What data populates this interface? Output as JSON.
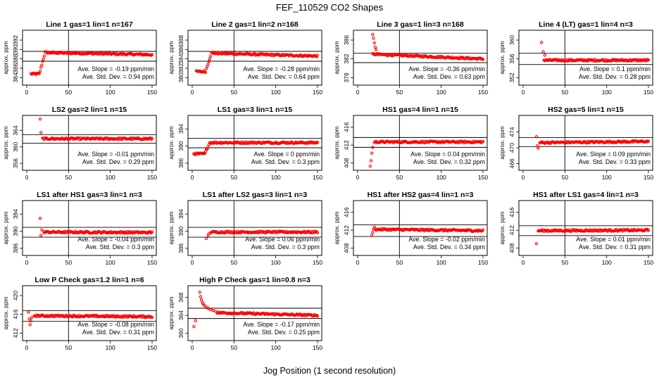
{
  "figure": {
    "title": "FEF_110529  CO2 Shapes",
    "xlabel": "Jog Position (1 second resolution)"
  },
  "chart_data": [
    {
      "type": "scatter",
      "title": "Line 1 gas=1 lin=1 n=167",
      "ylabel": "approx. ppm",
      "xlim": [
        0,
        150
      ],
      "ylim": [
        383,
        393.5
      ],
      "yticks": [
        384,
        386,
        388,
        390,
        392
      ],
      "xticks": [
        0,
        50,
        100,
        150
      ],
      "hlines": [
        389.6,
        387.5
      ],
      "vline": 50,
      "slope_text": "Ave. Slope = -0.19  ppm/min",
      "std_text": "Ave. Std. Dev. = 0.94  ppm",
      "shape": {
        "start": 5,
        "end": 150,
        "y0": 384.8,
        "rise_start": 15,
        "rise_end": 22,
        "plateau": 389.4,
        "plateau_end_val": 388.9,
        "spike": null
      }
    },
    {
      "type": "scatter",
      "title": "Line 2 gas=1 lin=2 n=168",
      "ylabel": "approx. ppm",
      "xlim": [
        0,
        150
      ],
      "ylim": [
        379,
        389.5
      ],
      "yticks": [
        380,
        382,
        384,
        386,
        388
      ],
      "xticks": [
        0,
        50,
        100,
        150
      ],
      "hlines": [
        385.6,
        383.5
      ],
      "vline": 50,
      "slope_text": "Ave. Slope = -0.28  ppm/min",
      "std_text": "Ave. Std. Dev. = 0.64  ppm",
      "shape": {
        "start": 5,
        "end": 150,
        "y0": 381.3,
        "rise_start": 16,
        "rise_end": 23,
        "plateau": 385.3,
        "plateau_end_val": 384.6,
        "spike": null
      }
    },
    {
      "type": "scatter",
      "title": "Line 3 gas=1 lin=3 n=168",
      "ylabel": "approx. ppm",
      "xlim": [
        0,
        150
      ],
      "ylim": [
        377,
        387.5
      ],
      "yticks": [
        378,
        382,
        386
      ],
      "xticks": [
        0,
        50,
        100,
        150
      ],
      "hlines": [
        383.2,
        381.2
      ],
      "vline": 50,
      "slope_text": "Ave. Slope = -0.36  ppm/min",
      "std_text": "Ave. Std. Dev. = 0.63  ppm",
      "shape": {
        "start": 18,
        "end": 150,
        "y0": null,
        "rise_start": null,
        "rise_end": null,
        "plateau": 383.0,
        "plateau_end_val": 382.0,
        "spike": [
          [
            18,
            387.2
          ],
          [
            19,
            386.4
          ],
          [
            20,
            385.4
          ],
          [
            21,
            384.5
          ],
          [
            22,
            384.0
          ]
        ]
      }
    },
    {
      "type": "scatter",
      "title": "Line 4 (LT) gas=1 lin=4 n=3",
      "ylabel": "approx. ppm",
      "xlim": [
        0,
        150
      ],
      "ylim": [
        351,
        361.5
      ],
      "yticks": [
        352,
        356,
        360
      ],
      "xticks": [
        0,
        50,
        100,
        150
      ],
      "hlines": [
        357.2,
        354.8
      ],
      "vline": 50,
      "slope_text": "Ave. Slope = 0.1  ppm/min",
      "std_text": "Ave. Std. Dev. = 0.28  ppm",
      "shape": {
        "start": 25,
        "end": 150,
        "y0": null,
        "rise_start": null,
        "rise_end": null,
        "plateau": 355.7,
        "plateau_end_val": 355.7,
        "spike": [
          [
            22,
            359.5
          ],
          [
            24,
            357.5
          ],
          [
            26,
            356.8
          ]
        ]
      }
    },
    {
      "type": "scatter",
      "title": "LS2 gas=2 lin=1 n=15",
      "ylabel": "approx. ppm",
      "xlim": [
        0,
        150
      ],
      "ylim": [
        355,
        367
      ],
      "yticks": [
        356,
        360,
        364
      ],
      "xticks": [
        0,
        50,
        100,
        150
      ],
      "hlines": [
        363.0,
        360.9
      ],
      "vline": 50,
      "slope_text": "Ave. Slope = -0.01  ppm/min",
      "std_text": "Ave. Std. Dev. = 0.29  ppm",
      "shape": {
        "start": 19,
        "end": 150,
        "y0": null,
        "rise_start": null,
        "rise_end": null,
        "plateau": 362.0,
        "plateau_end_val": 362.0,
        "spike": [
          [
            16,
            366.8
          ],
          [
            17,
            363.5
          ]
        ]
      }
    },
    {
      "type": "scatter",
      "title": "LS1 gas=3 lin=1 n=15",
      "ylabel": "approx. ppm",
      "xlim": [
        0,
        150
      ],
      "ylim": [
        385,
        396.5
      ],
      "yticks": [
        386,
        390,
        394
      ],
      "xticks": [
        0,
        50,
        100,
        150
      ],
      "hlines": [
        391.8,
        389.6
      ],
      "vline": 50,
      "slope_text": "Ave. Slope = 0  ppm/min",
      "std_text": "Ave. Std. Dev. = 0.3  ppm",
      "shape": {
        "start": 2,
        "end": 150,
        "y0": 388.2,
        "rise_start": 15,
        "rise_end": 21,
        "plateau": 390.8,
        "plateau_end_val": 390.8,
        "spike": null
      }
    },
    {
      "type": "scatter",
      "title": "HS1 gas=4 lin=1 n=15",
      "ylabel": "approx. ppm",
      "xlim": [
        0,
        150
      ],
      "ylim": [
        407,
        418
      ],
      "yticks": [
        408,
        412,
        416
      ],
      "xticks": [
        0,
        50,
        100,
        150
      ],
      "hlines": [
        413.7,
        411.5
      ],
      "vline": 50,
      "slope_text": "Ave. Slope = 0.04  ppm/min",
      "std_text": "Ave. Std. Dev. = 0.32  ppm",
      "shape": {
        "start": 20,
        "end": 150,
        "y0": null,
        "rise_start": null,
        "rise_end": null,
        "plateau": 412.7,
        "plateau_end_val": 412.7,
        "spike": [
          [
            15,
            407.3
          ],
          [
            16,
            408.5
          ],
          [
            17,
            410.2
          ],
          [
            18,
            411.5
          ]
        ]
      }
    },
    {
      "type": "scatter",
      "title": "HS2 gas=5 lin=1 n=15",
      "ylabel": "approx. ppm",
      "xlim": [
        0,
        150
      ],
      "ylim": [
        465,
        477.5
      ],
      "yticks": [
        466,
        470,
        474
      ],
      "xticks": [
        0,
        50,
        100,
        150
      ],
      "hlines": [
        472.6,
        470.3
      ],
      "vline": 50,
      "slope_text": "Ave. Slope = 0.09  ppm/min",
      "std_text": "Ave. Std. Dev. = 0.33  ppm",
      "shape": {
        "start": 20,
        "end": 150,
        "y0": null,
        "rise_start": null,
        "rise_end": null,
        "plateau": 471.3,
        "plateau_end_val": 471.6,
        "spike": [
          [
            16,
            472.8
          ],
          [
            17,
            470.5
          ],
          [
            18,
            469.9
          ]
        ]
      }
    },
    {
      "type": "scatter",
      "title": "LS1 after HS1 gas=3 lin=1 n=3",
      "ylabel": "approx. ppm",
      "xlim": [
        0,
        150
      ],
      "ylim": [
        385,
        396.5
      ],
      "yticks": [
        386,
        390,
        394
      ],
      "xticks": [
        0,
        50,
        100,
        150
      ],
      "hlines": [
        390.9,
        388.6
      ],
      "vline": 50,
      "slope_text": "Ave. Slope = -0.04  ppm/min",
      "std_text": "Ave. Std. Dev. = 0.3  ppm",
      "shape": {
        "start": 20,
        "end": 150,
        "y0": null,
        "rise_start": null,
        "rise_end": null,
        "plateau": 389.8,
        "plateau_end_val": 389.7,
        "spike": [
          [
            16,
            393.0
          ],
          [
            17,
            389.0
          ],
          [
            18,
            390.3
          ]
        ]
      }
    },
    {
      "type": "scatter",
      "title": "LS1 after LS2 gas=3 lin=1 n=3",
      "ylabel": "approx. ppm",
      "xlim": [
        0,
        150
      ],
      "ylim": [
        385,
        396.5
      ],
      "yticks": [
        386,
        390,
        394
      ],
      "xticks": [
        0,
        50,
        100,
        150
      ],
      "hlines": [
        390.9,
        388.6
      ],
      "vline": 50,
      "slope_text": "Ave. Slope = 0.06  ppm/min",
      "std_text": "Ave. Std. Dev. = 0.3  ppm",
      "shape": {
        "start": 22,
        "end": 150,
        "y0": null,
        "rise_start": null,
        "rise_end": null,
        "plateau": 389.8,
        "plateau_end_val": 389.8,
        "spike": [
          [
            17,
            388.3
          ],
          [
            19,
            389.0
          ],
          [
            20,
            389.4
          ]
        ]
      }
    },
    {
      "type": "scatter",
      "title": "HS1 after HS2 gas=4 lin=1 n=3",
      "ylabel": "approx. ppm",
      "xlim": [
        0,
        150
      ],
      "ylim": [
        407,
        418
      ],
      "yticks": [
        408,
        412,
        416
      ],
      "xticks": [
        0,
        50,
        100,
        150
      ],
      "hlines": [
        413.2,
        410.6
      ],
      "vline": 50,
      "slope_text": "Ave. Slope = -0.02  ppm/min",
      "std_text": "Ave. Std. Dev. = 0.34  ppm",
      "shape": {
        "start": 21,
        "end": 150,
        "y0": null,
        "rise_start": null,
        "rise_end": null,
        "plateau": 412.2,
        "plateau_end_val": 411.9,
        "spike": [
          [
            17,
            410.8
          ],
          [
            18,
            411.5
          ],
          [
            19,
            412.2
          ],
          [
            20,
            412.7
          ]
        ]
      }
    },
    {
      "type": "scatter",
      "title": "HS1 after LS1 gas=4 lin=1 n=3",
      "ylabel": "approx. ppm",
      "xlim": [
        0,
        150
      ],
      "ylim": [
        407,
        418
      ],
      "yticks": [
        408,
        412,
        416
      ],
      "xticks": [
        0,
        50,
        100,
        150
      ],
      "hlines": [
        413.0,
        410.8
      ],
      "vline": 50,
      "slope_text": "Ave. Slope = 0.01  ppm/min",
      "std_text": "Ave. Std. Dev. = 0.31  ppm",
      "shape": {
        "start": 18,
        "end": 150,
        "y0": null,
        "rise_start": null,
        "rise_end": null,
        "plateau": 411.9,
        "plateau_end_val": 412.0,
        "spike": [
          [
            16,
            409.0
          ]
        ]
      }
    },
    {
      "type": "scatter",
      "title": "Low P Check gas=1.2 lin=1 n=6",
      "ylabel": "approx. ppm",
      "xlim": [
        0,
        150
      ],
      "ylim": [
        411,
        421.5
      ],
      "yticks": [
        412,
        416,
        420
      ],
      "xticks": [
        0,
        50,
        100,
        150
      ],
      "hlines": [
        416.8,
        414.5
      ],
      "vline": 50,
      "slope_text": "Ave. Slope = -0.08  ppm/min",
      "std_text": "Ave. Std. Dev. = 0.31  ppm",
      "shape": {
        "start": 9,
        "end": 150,
        "y0": null,
        "rise_start": null,
        "rise_end": null,
        "plateau": 415.7,
        "plateau_end_val": 415.5,
        "spike": [
          [
            2,
            416.5
          ],
          [
            3,
            415.0
          ],
          [
            4,
            413.8
          ],
          [
            5,
            414.6
          ],
          [
            6,
            415.3
          ]
        ]
      }
    },
    {
      "type": "scatter",
      "title": "High P Check gas=1 lin=0.8 n=3",
      "ylabel": "approx. ppm",
      "xlim": [
        0,
        150
      ],
      "ylim": [
        359,
        370
      ],
      "yticks": [
        360,
        364,
        368
      ],
      "xticks": [
        0,
        50,
        100,
        150
      ],
      "hlines": [
        365.6,
        363.3
      ],
      "vline": 50,
      "slope_text": "Ave. Slope = -0.17  ppm/min",
      "std_text": "Ave. Std. Dev. = 0.25  ppm",
      "shape": {
        "start": 30,
        "end": 150,
        "y0": null,
        "rise_start": null,
        "rise_end": null,
        "plateau": 364.6,
        "plateau_end_val": 364.0,
        "spike": [
          [
            2,
            361.5
          ],
          [
            4,
            362.8
          ],
          [
            9,
            369.2
          ],
          [
            10,
            368.2
          ],
          [
            11,
            367.5
          ],
          [
            12,
            367.0
          ],
          [
            13,
            366.6
          ],
          [
            14,
            366.3
          ],
          [
            16,
            366.0
          ],
          [
            18,
            365.7
          ],
          [
            20,
            365.5
          ],
          [
            22,
            365.3
          ],
          [
            25,
            365.1
          ],
          [
            28,
            364.9
          ]
        ]
      }
    }
  ]
}
